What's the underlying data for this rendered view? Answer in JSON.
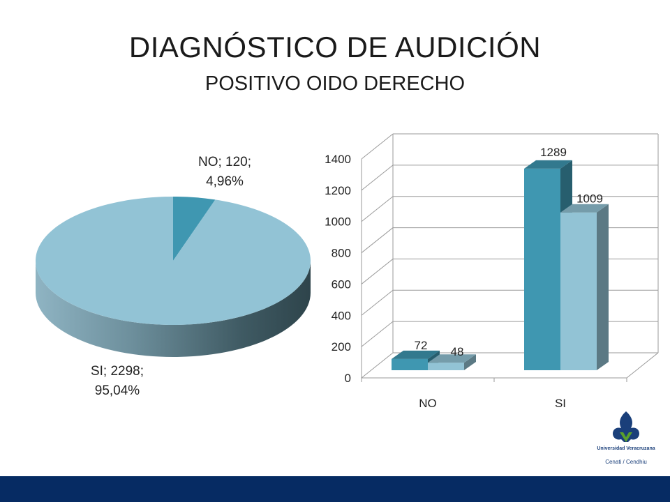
{
  "title": "DIAGNÓSTICO DE AUDICIÓN",
  "subtitle": "POSITIVO OIDO DERECHO",
  "colors": {
    "pie_no": "#3f97b1",
    "pie_si": "#92c3d5",
    "bar_dark": "#3f97b1",
    "bar_light": "#92c3d5",
    "footer": "#062b63",
    "logo": "#1a3f7a",
    "logo_accent": "#5aa02c"
  },
  "logo": {
    "line1": "Universidad Veracruzana",
    "line2": "Cenati / Cendhiu"
  },
  "chart_data": [
    {
      "type": "pie",
      "slices": [
        {
          "label": "NO",
          "value": 120,
          "percent": "4,96%",
          "display": "NO; 120; 4,96%"
        },
        {
          "label": "SI",
          "value": 2298,
          "percent": "95,04%",
          "display": "SI; 2298; 95,04%"
        }
      ],
      "data_labels": [
        {
          "line1": "NO; 120;",
          "line2": "4,96%"
        },
        {
          "line1": "SI; 2298;",
          "line2": "95,04%"
        }
      ]
    },
    {
      "type": "bar",
      "categories": [
        "NO",
        "SI"
      ],
      "series": [
        {
          "values": [
            72,
            1289
          ]
        },
        {
          "values": [
            48,
            1009
          ]
        }
      ],
      "ylim": [
        0,
        1400
      ],
      "yticks": [
        0,
        200,
        400,
        600,
        800,
        1000,
        1200,
        1400
      ],
      "grid": true
    }
  ]
}
